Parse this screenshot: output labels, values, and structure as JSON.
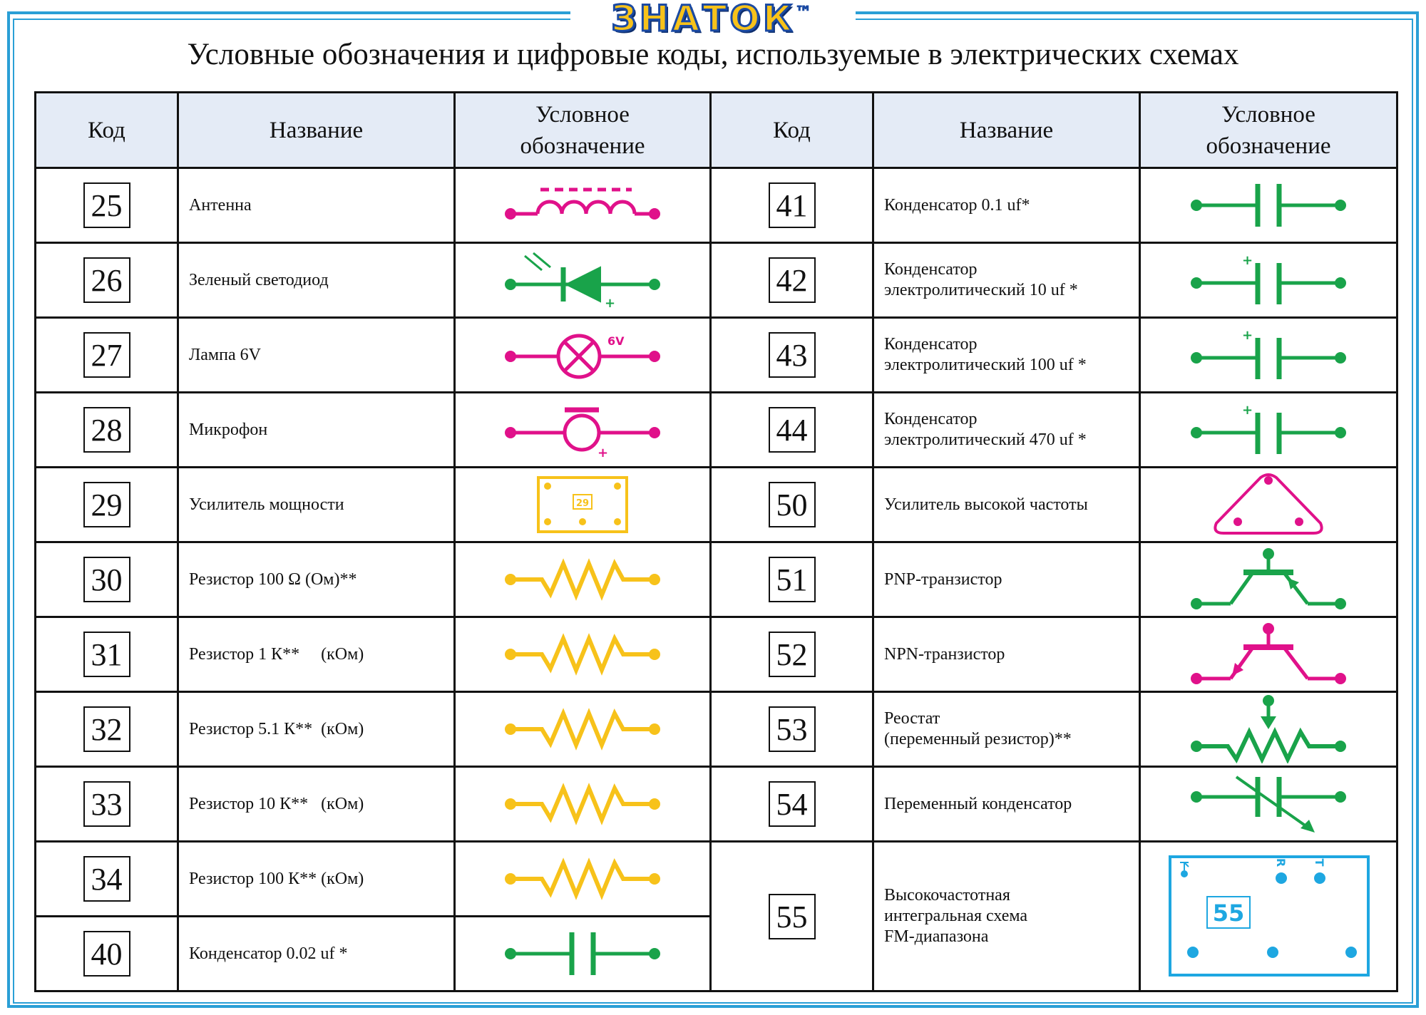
{
  "brand": {
    "name": "ЗНАТОК",
    "tm": "™"
  },
  "title": "Условные обозначения и цифровые коды, используемые в электрических схемах",
  "headers": {
    "code": "Код",
    "name": "Название",
    "symbol_line1": "Условное",
    "symbol_line2": "обозначение"
  },
  "colors": {
    "frame": "#2a9fd6",
    "header_bg": "#e4ebf6",
    "magenta": "#e0118a",
    "green": "#19a34a",
    "yellow": "#f7c21a",
    "cyan": "#1ea7e1"
  },
  "left": [
    {
      "code": "25",
      "name": "Антенна",
      "icon": "antenna-icon"
    },
    {
      "code": "26",
      "name": "Зеленый светодиод",
      "icon": "led-icon"
    },
    {
      "code": "27",
      "name": "Лампа 6V",
      "icon": "lamp-icon",
      "label": "6V"
    },
    {
      "code": "28",
      "name": "Микрофон",
      "icon": "microphone-icon"
    },
    {
      "code": "29",
      "name": "Усилитель мощности",
      "icon": "power-amplifier-icon",
      "label": "29"
    },
    {
      "code": "30",
      "name": "Резистор 100 Ω (Ом)**",
      "icon": "resistor-icon"
    },
    {
      "code": "31",
      "name": "Резистор 1 К**     (кОм)",
      "icon": "resistor-icon"
    },
    {
      "code": "32",
      "name": "Резистор 5.1 К**  (кОм)",
      "icon": "resistor-icon"
    },
    {
      "code": "33",
      "name": "Резистор 10 К**   (кОм)",
      "icon": "resistor-icon"
    },
    {
      "code": "34",
      "name": "Резистор 100 К** (кОм)",
      "icon": "resistor-icon"
    },
    {
      "code": "40",
      "name": "Конденсатор 0.02 uf *",
      "icon": "capacitor-icon"
    }
  ],
  "right": [
    {
      "code": "41",
      "name1": "Конденсатор 0.1 uf*",
      "name2": "",
      "icon": "capacitor-icon"
    },
    {
      "code": "42",
      "name1": "Конденсатор",
      "name2": "электролитический 10 uf *",
      "icon": "electrolytic-capacitor-icon"
    },
    {
      "code": "43",
      "name1": "Конденсатор",
      "name2": "электролитический 100 uf *",
      "icon": "electrolytic-capacitor-icon"
    },
    {
      "code": "44",
      "name1": "Конденсатор",
      "name2": "электролитический 470 uf *",
      "icon": "electrolytic-capacitor-icon"
    },
    {
      "code": "50",
      "name1": "Усилитель высокой частоты",
      "name2": "",
      "icon": "hf-amplifier-icon"
    },
    {
      "code": "51",
      "name1": "PNP-транзистор",
      "name2": "",
      "icon": "pnp-transistor-icon"
    },
    {
      "code": "52",
      "name1": "NPN-транзистор",
      "name2": "",
      "icon": "npn-transistor-icon"
    },
    {
      "code": "53",
      "name1": "Реостат",
      "name2": "(переменный резистор)**",
      "icon": "rheostat-icon"
    },
    {
      "code": "54",
      "name1": "Переменный конденсатор",
      "name2": "",
      "icon": "variable-capacitor-icon"
    }
  ],
  "right_last": {
    "code": "55",
    "name1": "Высокочастотная",
    "name2": "интегральная схема",
    "name3": "FM-диапазона",
    "icon": "fm-ic-icon",
    "label": "55",
    "pin_r": "R",
    "pin_t": "T"
  },
  "plus": "+"
}
